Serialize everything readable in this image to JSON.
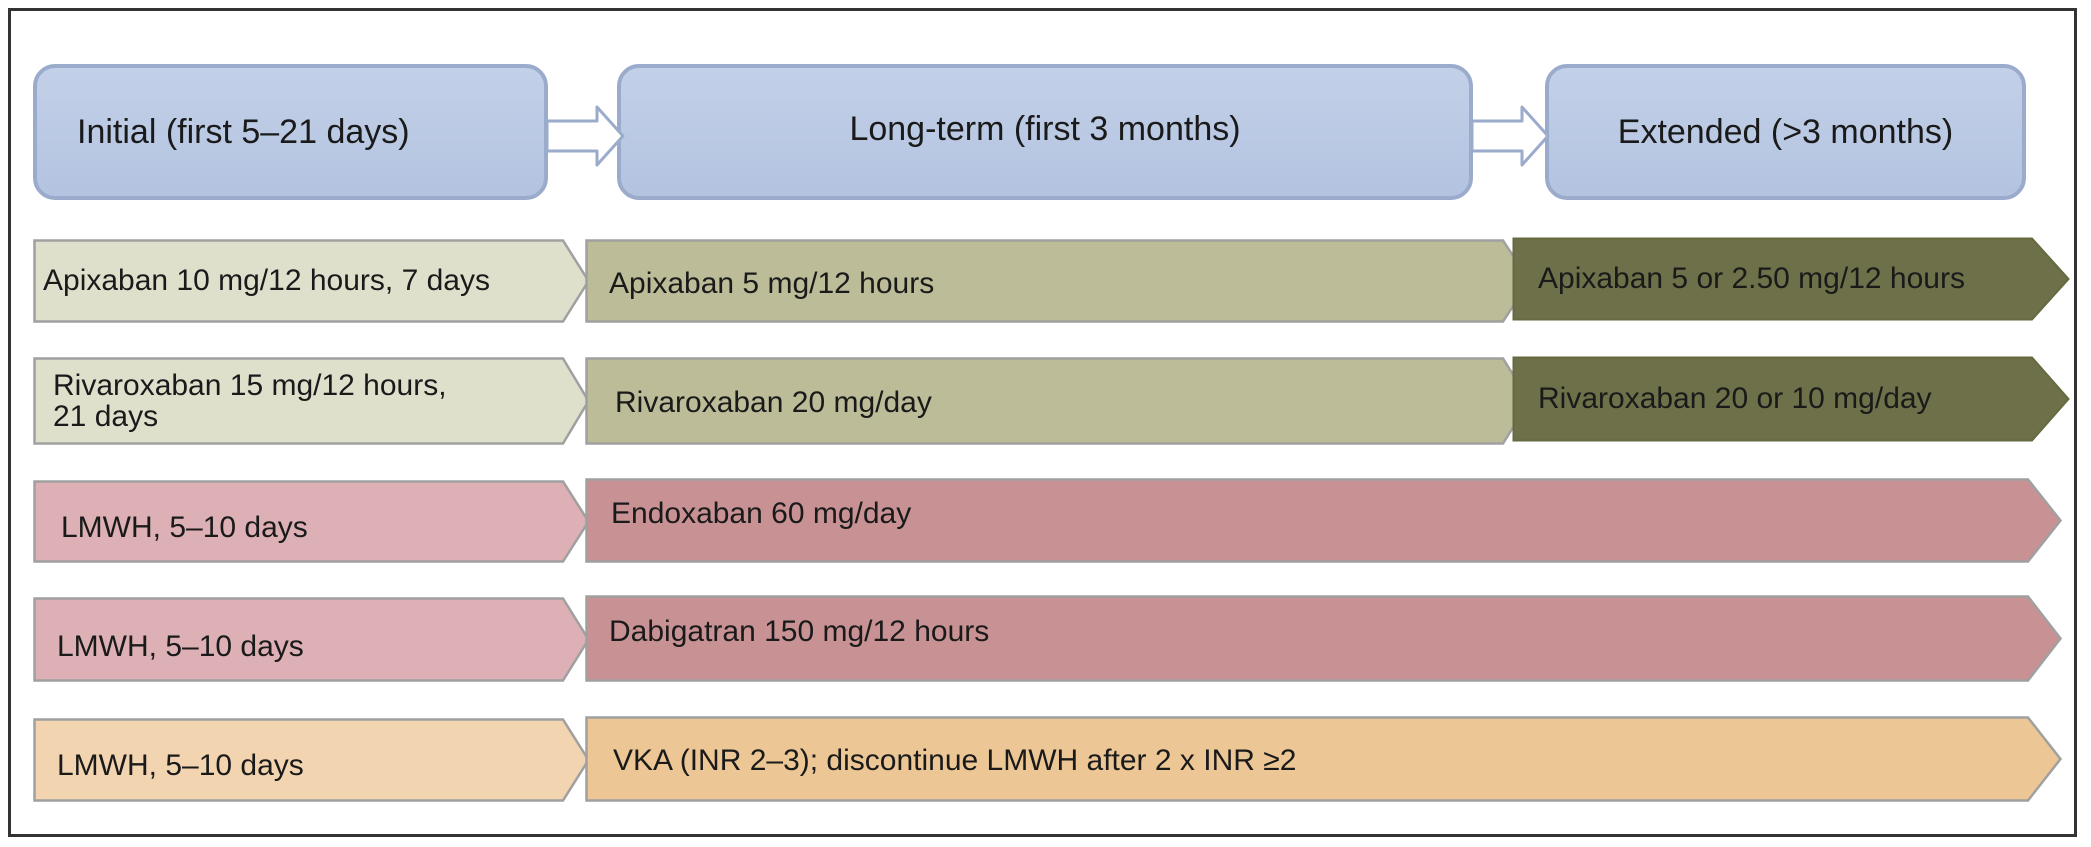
{
  "phases": {
    "initial": "Initial (first 5–21 days)",
    "long_term": "Long-term (first 3 months)",
    "extended": "Extended (>3 months)"
  },
  "colors": {
    "phase_fill": "#bccae4",
    "phase_border": "#9aabcc",
    "apixaban_rivaroxaban_initial": "#dfe0cc",
    "apixaban_rivaroxaban_longterm": "#bcbc99",
    "apixaban_rivaroxaban_extended": "#6d7048",
    "lmwh_initial": "#dcb0b4",
    "endoxaban_dabigatran": "#c89295",
    "vka_lmwh_initial": "#f3d4b0",
    "vka": "#ecc795",
    "outline": "#a0a0a0"
  },
  "rows": [
    {
      "initial": "Apixaban 10 mg/12 hours, 7 days",
      "long_term": "Apixaban 5 mg/12 hours",
      "extended": "Apixaban 5 or 2.50 mg/12 hours"
    },
    {
      "initial_line1": "Rivaroxaban 15 mg/12 hours,",
      "initial_line2": "21 days",
      "long_term": "Rivaroxaban 20 mg/day",
      "extended": "Rivaroxaban 20 or 10 mg/day"
    },
    {
      "initial": "LMWH, 5–10 days",
      "long_term": "Endoxaban 60 mg/day"
    },
    {
      "initial": "LMWH, 5–10 days",
      "long_term": "Dabigatran 150 mg/12 hours"
    },
    {
      "initial": "LMWH, 5–10 days",
      "long_term": "VKA (INR 2–3); discontinue LMWH after 2 x INR ≥2"
    }
  ]
}
